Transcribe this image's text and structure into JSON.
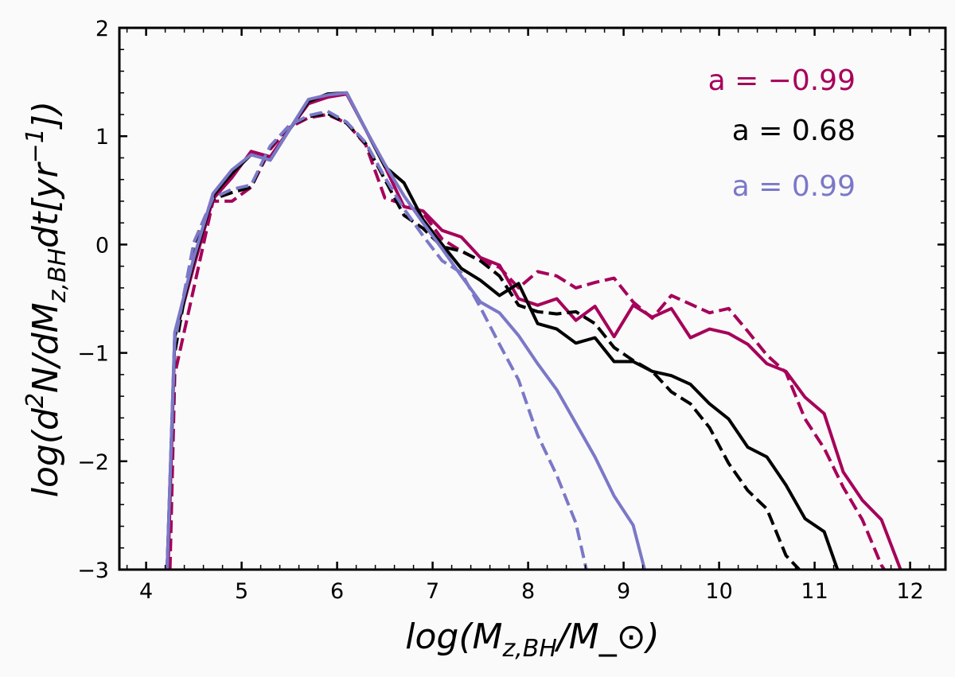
{
  "chart_data": {
    "type": "line",
    "title": "",
    "xlabel": "log(M_{z,BH}/M_⊙)",
    "ylabel": "log(d^{2}N/dM_{z,BH}dt[yr^{−1}])",
    "xlim": [
      3.72,
      12.37
    ],
    "ylim": [
      -3,
      2
    ],
    "xticks": [
      "4",
      "5",
      "6",
      "7",
      "8",
      "9",
      "10",
      "11",
      "12"
    ],
    "yticks": [
      "-3",
      "-2",
      "-1",
      "0",
      "1",
      "2"
    ],
    "grid": false,
    "legend_placement": "top-right",
    "legend": [
      {
        "label": "a = −0.99",
        "color": "#a6005a"
      },
      {
        "label": "a = 0.68",
        "color": "#000000"
      },
      {
        "label": "a = 0.99",
        "color": "#7b78c8"
      }
    ],
    "series": [
      {
        "legend_index": 0,
        "color": "#a6005a",
        "style": "solid",
        "x": [
          4.23,
          4.3,
          4.5,
          4.7,
          4.9,
          5.1,
          5.3,
          5.5,
          5.7,
          5.9,
          6.1,
          6.3,
          6.5,
          6.7,
          6.9,
          7.1,
          7.3,
          7.5,
          7.7,
          7.9,
          8.1,
          8.3,
          8.5,
          8.7,
          8.9,
          9.1,
          9.3,
          9.5,
          9.7,
          9.9,
          10.1,
          10.3,
          10.5,
          10.7,
          10.9,
          11.1,
          11.3,
          11.5,
          11.7,
          11.9
        ],
        "y": [
          -3,
          -0.85,
          -0.2,
          0.42,
          0.62,
          0.86,
          0.81,
          1.06,
          1.3,
          1.36,
          1.39,
          1.06,
          0.72,
          0.35,
          0.31,
          0.13,
          0.07,
          -0.12,
          -0.19,
          -0.5,
          -0.56,
          -0.5,
          -0.7,
          -0.57,
          -0.85,
          -0.56,
          -0.67,
          -0.59,
          -0.86,
          -0.78,
          -0.82,
          -0.92,
          -1.1,
          -1.17,
          -1.41,
          -1.56,
          -2.1,
          -2.36,
          -2.54,
          -3
        ]
      },
      {
        "legend_index": 0,
        "color": "#a6005a",
        "style": "dashed",
        "x": [
          4.25,
          4.3,
          4.5,
          4.7,
          4.9,
          5.1,
          5.3,
          5.5,
          5.7,
          5.9,
          6.1,
          6.3,
          6.5,
          6.7,
          6.9,
          7.1,
          7.3,
          7.5,
          7.7,
          7.9,
          8.1,
          8.3,
          8.5,
          8.7,
          8.9,
          9.1,
          9.3,
          9.5,
          9.7,
          9.9,
          10.1,
          10.3,
          10.5,
          10.7,
          10.9,
          11.1,
          11.3,
          11.5,
          11.7,
          11.73
        ],
        "y": [
          -3,
          -1.2,
          -0.4,
          0.4,
          0.4,
          0.53,
          0.88,
          1.08,
          1.17,
          1.2,
          1.12,
          0.92,
          0.43,
          0.37,
          0.29,
          0.05,
          -0.06,
          -0.15,
          -0.21,
          -0.4,
          -0.25,
          -0.29,
          -0.4,
          -0.35,
          -0.31,
          -0.53,
          -0.68,
          -0.47,
          -0.55,
          -0.63,
          -0.59,
          -0.8,
          -1.02,
          -1.18,
          -1.61,
          -1.88,
          -2.24,
          -2.54,
          -2.96,
          -3
        ]
      },
      {
        "legend_index": 1,
        "color": "#000000",
        "style": "solid",
        "x": [
          4.22,
          4.3,
          4.5,
          4.7,
          4.9,
          5.1,
          5.3,
          5.5,
          5.7,
          5.9,
          6.1,
          6.3,
          6.5,
          6.7,
          6.9,
          7.1,
          7.3,
          7.5,
          7.7,
          7.9,
          8.1,
          8.3,
          8.5,
          8.7,
          8.9,
          9.1,
          9.3,
          9.5,
          9.7,
          9.9,
          10.1,
          10.3,
          10.5,
          10.7,
          10.9,
          11.1,
          11.24
        ],
        "y": [
          -3,
          -0.85,
          -0.15,
          0.45,
          0.66,
          0.83,
          0.78,
          1.06,
          1.32,
          1.39,
          1.4,
          1.06,
          0.72,
          0.57,
          0.23,
          0.0,
          -0.22,
          -0.33,
          -0.47,
          -0.36,
          -0.73,
          -0.78,
          -0.91,
          -0.86,
          -1.08,
          -1.08,
          -1.17,
          -1.21,
          -1.29,
          -1.47,
          -1.61,
          -1.87,
          -1.96,
          -2.22,
          -2.53,
          -2.65,
          -3
        ]
      },
      {
        "legend_index": 1,
        "color": "#000000",
        "style": "dashed",
        "x": [
          4.22,
          4.3,
          4.5,
          4.7,
          4.9,
          5.1,
          5.3,
          5.5,
          5.7,
          5.9,
          6.1,
          6.3,
          6.5,
          6.7,
          6.9,
          7.1,
          7.3,
          7.5,
          7.7,
          7.9,
          8.1,
          8.3,
          8.5,
          8.7,
          8.9,
          9.1,
          9.3,
          9.5,
          9.7,
          9.9,
          10.1,
          10.3,
          10.5,
          10.7,
          10.84
        ],
        "y": [
          -3,
          -1.0,
          0.0,
          0.42,
          0.48,
          0.53,
          0.9,
          1.1,
          1.18,
          1.21,
          1.12,
          0.93,
          0.6,
          0.27,
          0.15,
          -0.02,
          -0.06,
          -0.15,
          -0.29,
          -0.56,
          -0.62,
          -0.64,
          -0.62,
          -0.73,
          -0.95,
          -1.07,
          -1.17,
          -1.36,
          -1.47,
          -1.69,
          -2.02,
          -2.27,
          -2.44,
          -2.87,
          -3
        ]
      },
      {
        "legend_index": 2,
        "color": "#7b78c8",
        "style": "solid",
        "x": [
          4.22,
          4.3,
          4.5,
          4.7,
          4.9,
          5.1,
          5.3,
          5.5,
          5.7,
          5.9,
          6.1,
          6.3,
          6.5,
          6.7,
          6.9,
          7.1,
          7.3,
          7.5,
          7.7,
          7.9,
          8.1,
          8.3,
          8.5,
          8.7,
          8.9,
          9.1,
          9.22
        ],
        "y": [
          -3,
          -0.81,
          -0.12,
          0.47,
          0.69,
          0.83,
          0.78,
          1.06,
          1.34,
          1.38,
          1.4,
          1.06,
          0.74,
          0.45,
          0.2,
          -0.04,
          -0.29,
          -0.53,
          -0.63,
          -0.84,
          -1.1,
          -1.34,
          -1.65,
          -1.96,
          -2.32,
          -2.59,
          -3
        ]
      },
      {
        "legend_index": 2,
        "color": "#7b78c8",
        "style": "dashed",
        "x": [
          4.22,
          4.3,
          4.5,
          4.7,
          4.9,
          5.1,
          5.3,
          5.5,
          5.7,
          5.9,
          6.1,
          6.3,
          6.5,
          6.7,
          6.9,
          7.1,
          7.3,
          7.5,
          7.7,
          7.9,
          8.1,
          8.3,
          8.5,
          8.61
        ],
        "y": [
          -3,
          -0.9,
          0.02,
          0.43,
          0.51,
          0.55,
          0.91,
          1.1,
          1.19,
          1.23,
          1.13,
          0.94,
          0.62,
          0.33,
          0.08,
          -0.15,
          -0.26,
          -0.58,
          -0.92,
          -1.25,
          -1.76,
          -2.13,
          -2.57,
          -3
        ]
      }
    ]
  }
}
